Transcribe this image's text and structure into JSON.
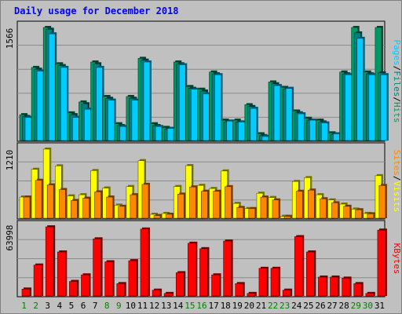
{
  "title": "Daily usage for December 2018",
  "colors": {
    "background": "#c0c0c0",
    "title": "#0000ff",
    "pages": "#00ccff",
    "files": "#008080",
    "hits": "#009966",
    "visits": "#ffff00",
    "sites": "#ff8800",
    "kbytes": "#ff0000",
    "weekday_label": "#008000",
    "weekend_label": "#006644"
  },
  "chart_data": [
    {
      "type": "bar",
      "panel": "top",
      "max_label": "1566",
      "ylim": [
        0,
        1566
      ],
      "legend": [
        "Pages",
        "Files",
        "Hits"
      ],
      "legend_separator": "/",
      "categories": [
        "1",
        "2",
        "3",
        "4",
        "5",
        "6",
        "7",
        "8",
        "9",
        "10",
        "11",
        "12",
        "13",
        "14",
        "15",
        "16",
        "17",
        "18",
        "19",
        "20",
        "21",
        "22",
        "23",
        "24",
        "25",
        "26",
        "27",
        "28",
        "29",
        "30",
        "31"
      ],
      "series": [
        {
          "name": "Hits",
          "values": [
            366,
            1016,
            1566,
            1066,
            391,
            541,
            1091,
            616,
            241,
            616,
            1141,
            241,
            191,
            1091,
            753,
            716,
            953,
            291,
            291,
            503,
            103,
            816,
            741,
            416,
            316,
            291,
            116,
            953,
            1566,
            953,
            1566
          ]
        },
        {
          "name": "Files",
          "values": [
            341,
            991,
            1541,
            1041,
            366,
            516,
            1066,
            591,
            216,
            591,
            1116,
            216,
            166,
            1066,
            728,
            691,
            928,
            266,
            266,
            478,
            78,
            791,
            716,
            391,
            291,
            266,
            91,
            928,
            1491,
            928,
            941
          ]
        },
        {
          "name": "Pages",
          "values": [
            328,
            966,
            1478,
            1016,
            328,
            441,
            1016,
            566,
            203,
            566,
            1091,
            203,
            178,
            1053,
            716,
            653,
            916,
            278,
            266,
            453,
            66,
            766,
            728,
            378,
            291,
            253,
            103,
            916,
            1416,
            916,
            916
          ]
        }
      ]
    },
    {
      "type": "bar",
      "panel": "middle",
      "max_label": "1210",
      "ylim": [
        0,
        1210
      ],
      "legend": [
        "Sites",
        "Visits"
      ],
      "legend_separator": "/",
      "categories": [
        "1",
        "2",
        "3",
        "4",
        "5",
        "6",
        "7",
        "8",
        "9",
        "10",
        "11",
        "12",
        "13",
        "14",
        "15",
        "16",
        "17",
        "18",
        "19",
        "20",
        "21",
        "22",
        "23",
        "24",
        "25",
        "26",
        "27",
        "28",
        "29",
        "30",
        "31"
      ],
      "series": [
        {
          "name": "Visits",
          "values": [
            380,
            860,
            1210,
            920,
            400,
            420,
            838,
            536,
            240,
            562,
            1010,
            81,
            96,
            562,
            924,
            582,
            528,
            832,
            270,
            180,
            446,
            372,
            46,
            650,
            716,
            420,
            330,
            258,
            171,
            96,
            750
          ]
        },
        {
          "name": "Sites",
          "values": [
            380,
            670,
            590,
            510,
            320,
            360,
            470,
            380,
            220,
            420,
            600,
            60,
            82,
            430,
            555,
            480,
            480,
            560,
            200,
            180,
            380,
            330,
            46,
            480,
            500,
            350,
            280,
            220,
            160,
            90,
            580
          ]
        }
      ]
    },
    {
      "type": "bar",
      "panel": "bottom",
      "max_label": "63998",
      "ylim": [
        0,
        63998
      ],
      "legend": [
        "KBytes"
      ],
      "categories": [
        "1",
        "2",
        "3",
        "4",
        "5",
        "6",
        "7",
        "8",
        "9",
        "10",
        "11",
        "12",
        "13",
        "14",
        "15",
        "16",
        "17",
        "18",
        "19",
        "20",
        "21",
        "22",
        "23",
        "24",
        "25",
        "26",
        "27",
        "28",
        "29",
        "30",
        "31"
      ],
      "series": [
        {
          "name": "KBytes",
          "values": [
            7000,
            29000,
            63998,
            41000,
            14000,
            20000,
            53000,
            32000,
            12000,
            33000,
            62000,
            6000,
            3000,
            22000,
            49000,
            44000,
            20000,
            51000,
            12000,
            3000,
            26000,
            26000,
            6000,
            55000,
            41000,
            18000,
            18000,
            17000,
            12000,
            3000,
            61000
          ]
        }
      ]
    }
  ],
  "x_labels": {
    "values": [
      "1",
      "2",
      "3",
      "4",
      "5",
      "6",
      "7",
      "8",
      "9",
      "10",
      "11",
      "12",
      "13",
      "14",
      "15",
      "16",
      "17",
      "18",
      "19",
      "20",
      "21",
      "22",
      "23",
      "24",
      "25",
      "26",
      "27",
      "28",
      "29",
      "30",
      "31"
    ],
    "weekend": [
      "1",
      "2",
      "8",
      "9",
      "15",
      "16",
      "22",
      "23",
      "29",
      "30"
    ]
  }
}
